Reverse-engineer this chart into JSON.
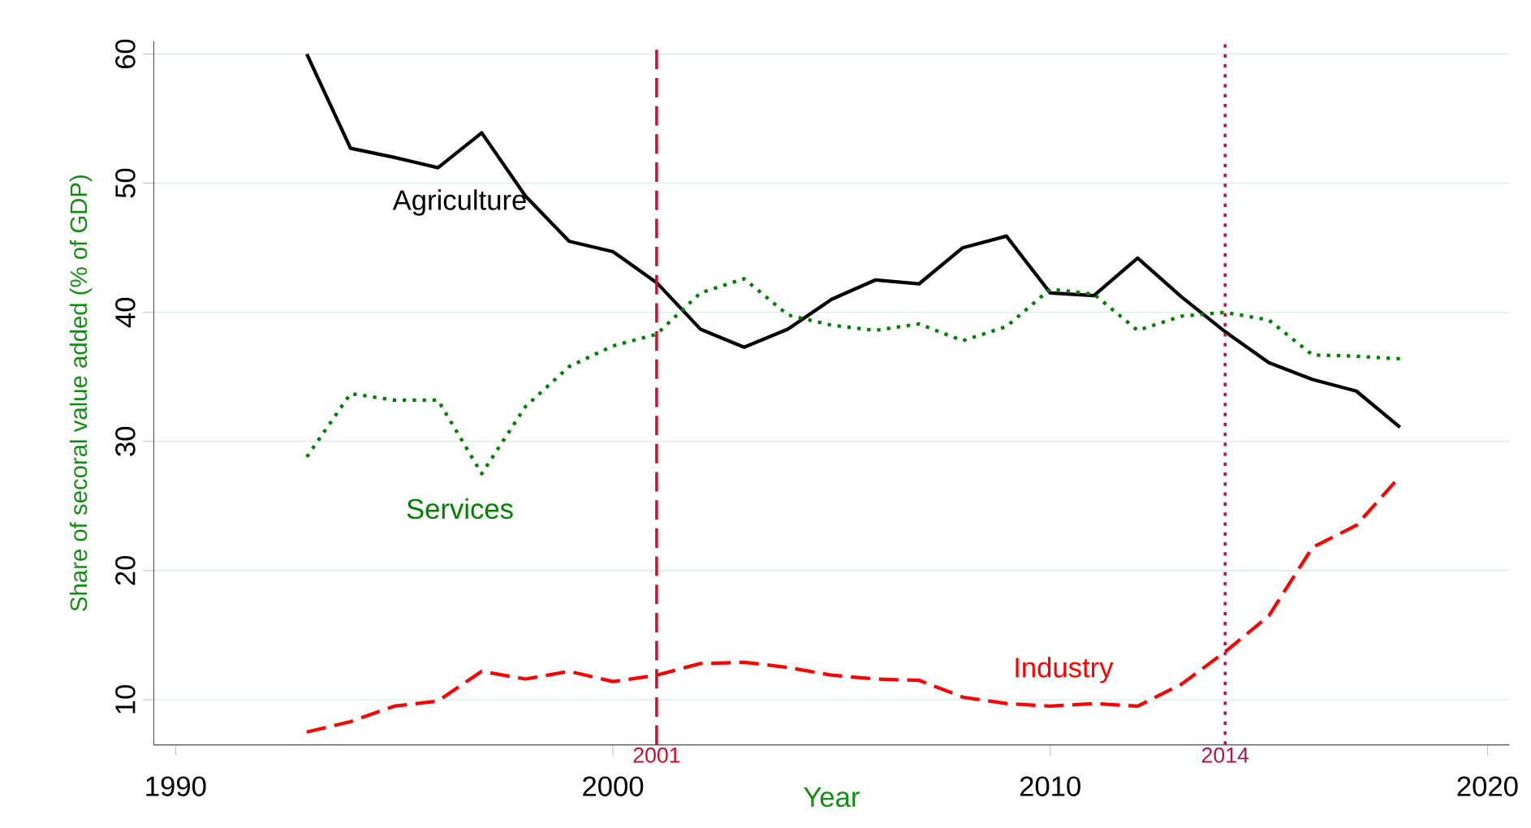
{
  "chart_data": {
    "type": "line",
    "xlabel": "Year",
    "ylabel": "Share of secoral value added (% of GDP)",
    "x": [
      1993,
      1994,
      1995,
      1996,
      1997,
      1998,
      1999,
      2000,
      2001,
      2002,
      2003,
      2004,
      2005,
      2006,
      2007,
      2008,
      2009,
      2010,
      2011,
      2012,
      2013,
      2014,
      2015,
      2016,
      2017,
      2018
    ],
    "series": [
      {
        "name": "Agriculture",
        "color": "#000000",
        "line_style": "solid",
        "values": [
          60,
          52.7,
          52,
          51.2,
          53.9,
          49,
          45.5,
          44.7,
          42.3,
          38.7,
          37.3,
          38.7,
          41,
          42.5,
          42.2,
          45,
          45.9,
          41.5,
          41.3,
          44.2,
          41.2,
          38.5,
          36.1,
          34.8,
          33.9,
          31.1
        ]
      },
      {
        "name": "Services",
        "color": "#008000",
        "line_style": "dotted",
        "values": [
          28.8,
          33.7,
          33.2,
          33.2,
          27.5,
          32.7,
          35.8,
          37.4,
          38.3,
          41.5,
          42.6,
          39.8,
          39,
          38.6,
          39.1,
          37.8,
          38.9,
          41.8,
          41.4,
          38.6,
          39.7,
          40,
          39.4,
          36.7,
          36.6,
          36.4
        ]
      },
      {
        "name": "Industry",
        "color": "#ff0000",
        "line_style": "dashed",
        "values": [
          7.5,
          8.3,
          9.5,
          9.9,
          12.2,
          11.6,
          12.2,
          11.4,
          11.9,
          12.8,
          12.9,
          12.5,
          11.9,
          11.6,
          11.5,
          10.2,
          9.7,
          9.5,
          9.7,
          9.5,
          11.2,
          13.7,
          16.5,
          21.8,
          23.5,
          27.3
        ]
      }
    ],
    "xlim": [
      1989.5,
      2020.5
    ],
    "ylim": [
      6.5,
      61
    ],
    "xticks": [
      1990,
      2000,
      2010,
      2020
    ],
    "yticks": [
      10,
      20,
      30,
      40,
      50,
      60
    ],
    "grid": "y",
    "ref_lines": [
      {
        "axis": "x",
        "value": 2001,
        "label": "2001",
        "color": "#c8102e",
        "line_style": "dashed"
      },
      {
        "axis": "x",
        "value": 2014,
        "label": "2014",
        "color": "#b0154a",
        "line_style": "dotted"
      }
    ]
  }
}
